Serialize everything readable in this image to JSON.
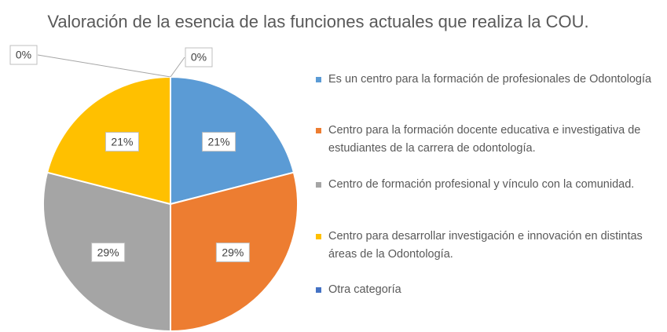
{
  "chart_data": {
    "type": "pie",
    "title": "Valoración de la esencia de las funciones actuales que realiza la COU.",
    "categories": [
      "Es un centro para la formación de profesionales de Odontología",
      "Centro para la formación docente educativa e investigativa de estudiantes de la carrera de odontología.",
      "Centro de formación profesional y vínculo con la comunidad.",
      "Centro para desarrollar investigación e innovación en distintas áreas de la Odontología.",
      "Otra categoría",
      null
    ],
    "values": [
      21,
      29,
      29,
      21,
      0,
      0
    ],
    "value_labels": [
      "21%",
      "29%",
      "29%",
      "21%",
      "0%",
      "0%"
    ],
    "colors": [
      "#5b9bd5",
      "#ed7d31",
      "#a5a5a5",
      "#ffc000",
      "#4472c4",
      "#70ad47"
    ],
    "legend": "right"
  }
}
